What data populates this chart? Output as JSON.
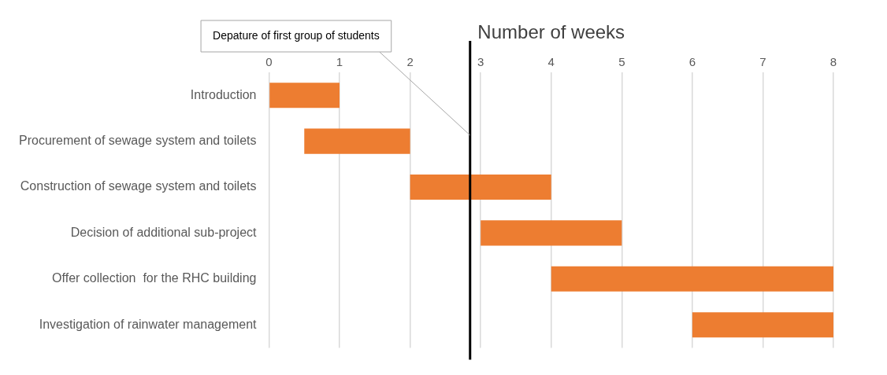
{
  "chart_data": {
    "type": "bar",
    "orientation": "horizontal",
    "title": "Number of weeks",
    "categories": [
      "Introduction",
      "Procurement of sewage system and toilets",
      "Construction of sewage system and toilets",
      "Decision of additional sub-project",
      "Offer collection  for the RHC building",
      "Investigation of rainwater management"
    ],
    "values": [
      1,
      1.5,
      2,
      2,
      4,
      2
    ],
    "base": [
      0,
      0.5,
      2,
      3,
      4,
      6
    ],
    "color": "#ed7d31",
    "xlim": [
      0,
      8
    ],
    "xticks": [
      0,
      1,
      2,
      3,
      4,
      5,
      6,
      7,
      8
    ],
    "grid": "x",
    "legend": false,
    "ref_lines": [
      {
        "axis": "x",
        "value": 2.85,
        "label": "Depature of first group of students",
        "color": "#000000"
      }
    ]
  }
}
